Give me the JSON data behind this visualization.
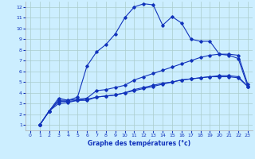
{
  "xlabel": "Graphe des températures (°c)",
  "bg_color": "#cceeff",
  "grid_color": "#aacccc",
  "line_color": "#1133bb",
  "xlim": [
    -0.5,
    23.5
  ],
  "ylim": [
    0.5,
    12.5
  ],
  "xticks": [
    0,
    1,
    2,
    3,
    4,
    5,
    6,
    7,
    8,
    9,
    10,
    11,
    12,
    13,
    14,
    15,
    16,
    17,
    18,
    19,
    20,
    21,
    22,
    23
  ],
  "yticks": [
    1,
    2,
    3,
    4,
    5,
    6,
    7,
    8,
    9,
    10,
    11,
    12
  ],
  "line1_x": [
    1,
    2,
    3,
    4,
    5,
    6,
    7,
    8,
    9,
    10,
    11,
    12,
    13,
    14,
    15,
    16,
    17,
    18,
    19,
    20,
    21,
    22,
    23
  ],
  "line1_y": [
    1.0,
    2.3,
    3.5,
    3.3,
    3.6,
    6.5,
    7.8,
    8.5,
    9.5,
    11.0,
    12.0,
    12.3,
    12.2,
    10.3,
    11.1,
    10.5,
    9.0,
    8.8,
    8.8,
    7.6,
    7.5,
    7.2,
    4.6
  ],
  "line2_x": [
    1,
    2,
    3,
    4,
    5,
    6,
    7,
    8,
    9,
    10,
    11,
    12,
    13,
    14,
    15,
    16,
    17,
    18,
    19,
    20,
    21,
    22,
    23
  ],
  "line2_y": [
    1.0,
    2.3,
    3.3,
    3.3,
    3.4,
    3.5,
    4.2,
    4.3,
    4.5,
    4.7,
    5.2,
    5.5,
    5.8,
    6.1,
    6.4,
    6.7,
    7.0,
    7.3,
    7.5,
    7.6,
    7.6,
    7.5,
    4.8
  ],
  "line3_x": [
    1,
    2,
    3,
    4,
    5,
    6,
    7,
    8,
    9,
    10,
    11,
    12,
    13,
    14,
    15,
    16,
    17,
    18,
    19,
    20,
    21,
    22,
    23
  ],
  "line3_y": [
    1.0,
    2.3,
    3.0,
    3.1,
    3.3,
    3.3,
    3.6,
    3.7,
    3.8,
    4.0,
    4.2,
    4.4,
    4.6,
    4.8,
    5.0,
    5.2,
    5.3,
    5.4,
    5.5,
    5.5,
    5.5,
    5.4,
    4.6
  ],
  "line4_x": [
    1,
    2,
    3,
    4,
    5,
    6,
    7,
    8,
    9,
    10,
    11,
    12,
    13,
    14,
    15,
    16,
    17,
    18,
    19,
    20,
    21,
    22,
    23
  ],
  "line4_y": [
    1.0,
    2.3,
    3.2,
    3.2,
    3.3,
    3.4,
    3.6,
    3.7,
    3.8,
    4.0,
    4.3,
    4.5,
    4.7,
    4.9,
    5.0,
    5.2,
    5.3,
    5.4,
    5.5,
    5.6,
    5.6,
    5.5,
    4.6
  ]
}
